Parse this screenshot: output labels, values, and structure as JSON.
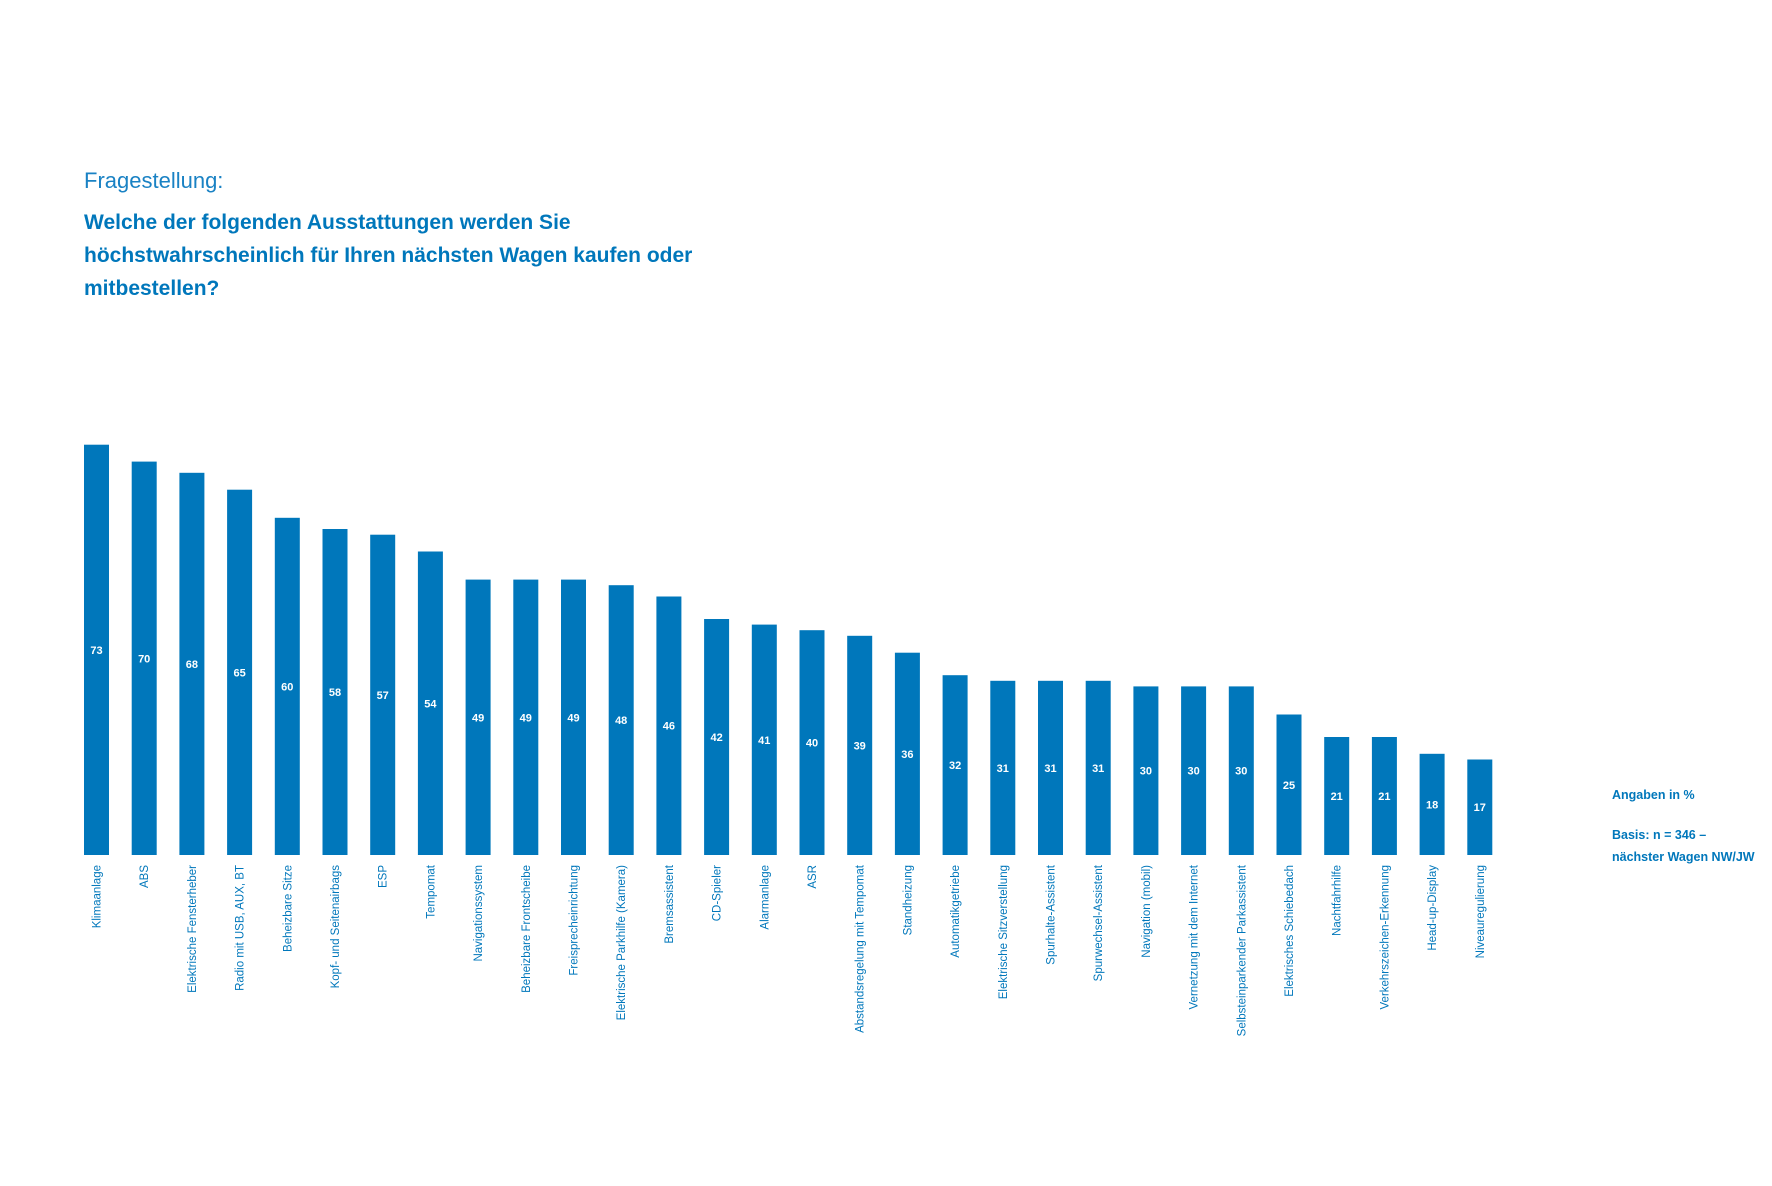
{
  "header": {
    "question_label": "Fragestellung:",
    "question_text": "Welche der folgenden Ausstattungen werden Sie höchstwahrscheinlich für Ihren nächsten Wagen kaufen oder mitbestellen?"
  },
  "notes": {
    "unit": "Angaben in %",
    "basis_line1": "Basis: n = 346 –",
    "basis_line2": "nächster Wagen NW/JW"
  },
  "colors": {
    "bar": "#0077bb",
    "text": "#0077bb",
    "value_label": "#ffffff"
  },
  "chart_data": {
    "type": "bar",
    "categories": [
      "Klimaanlage",
      "ABS",
      "Elektrische Fensterheber",
      "Radio mit USB, AUX, BT",
      "Beheizbare Sitze",
      "Kopf- und Seitenairbags",
      "ESP",
      "Tempomat",
      "Navigationssystem",
      "Beheizbare Frontscheibe",
      "Freisprecheinrichtung",
      "Elektrische Parkhilfe (Kamera)",
      "Bremsassistent",
      "CD-Spieler",
      "Alarmanlage",
      "ASR",
      "Abstandsregelung mit Tempomat",
      "Standheizung",
      "Automatikgetriebe",
      "Elektrische Sitzverstellung",
      "Spurhalte-Assistent",
      "Spurwechsel-Assistent",
      "Navigation (mobil)",
      "Vernetzung mit dem Internet",
      "Selbsteinparkender Parkassistent",
      "Elektrisches Schiebedach",
      "Nachtfahrhilfe",
      "Verkehrszeichen-Erkennung",
      "Head-up-Display",
      "Niveauregulierung"
    ],
    "values": [
      73,
      70,
      68,
      65,
      60,
      58,
      57,
      54,
      49,
      49,
      49,
      48,
      46,
      42,
      41,
      40,
      39,
      36,
      32,
      31,
      31,
      31,
      30,
      30,
      30,
      25,
      21,
      21,
      18,
      17
    ],
    "ylim": [
      0,
      100
    ],
    "grid": false,
    "legend": "none"
  }
}
